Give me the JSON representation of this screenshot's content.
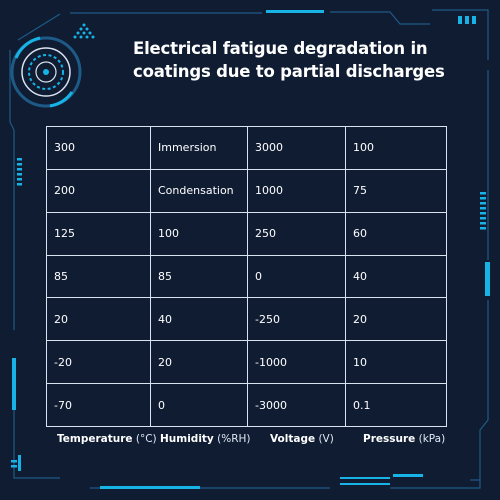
{
  "title": "Electrical fatigue degradation in coatings due to partial discharges",
  "colors": {
    "background": "#0f1c32",
    "accent": "#17b3e6",
    "text": "#ffffff",
    "grid_line": "#d9e2f0"
  },
  "table": {
    "rows": [
      [
        "300",
        "Immersion",
        "3000",
        "100"
      ],
      [
        "200",
        "Condensation",
        "1000",
        "75"
      ],
      [
        "125",
        "100",
        "250",
        "60"
      ],
      [
        "85",
        "85",
        "0",
        "40"
      ],
      [
        "20",
        "40",
        "-250",
        "20"
      ],
      [
        "-20",
        "20",
        "-1000",
        "10"
      ],
      [
        "-70",
        "0",
        "-3000",
        "0.1"
      ]
    ]
  },
  "legend": [
    {
      "name": "Temperature",
      "unit": "(°C)"
    },
    {
      "name": "Humidity",
      "unit": "(%RH)"
    },
    {
      "name": "Voltage",
      "unit": "(V)"
    },
    {
      "name": "Pressure",
      "unit": "(kPa)"
    }
  ],
  "icons": {
    "top_left_emblem": "concentric-ring-icon",
    "top_marker": "triangle-dot-cluster-icon"
  }
}
